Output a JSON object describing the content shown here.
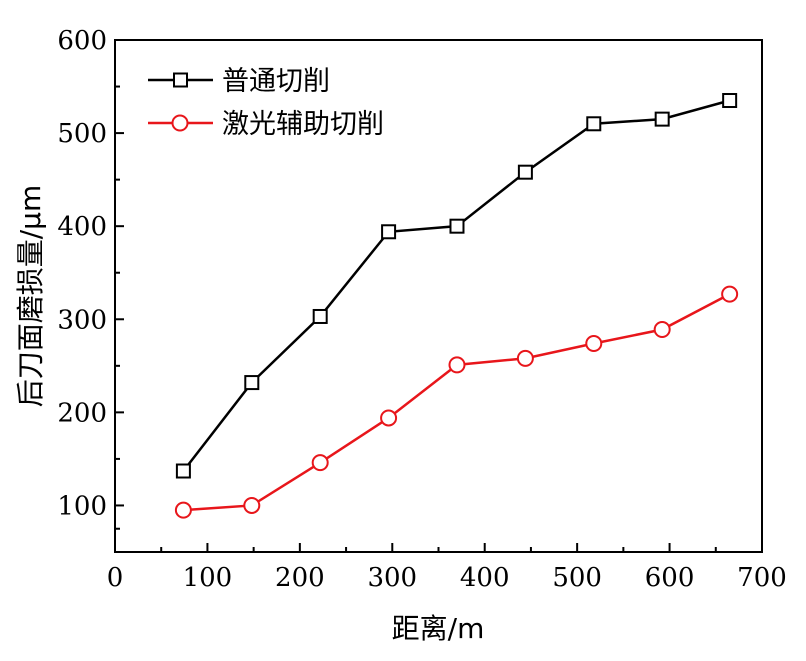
{
  "chart_data": {
    "type": "line",
    "xlabel": "距离/m",
    "ylabel": "后刀面磨损量/μm",
    "xlim": [
      0,
      700
    ],
    "ylim": [
      50,
      600
    ],
    "xticks": [
      0,
      100,
      200,
      300,
      400,
      500,
      600,
      700
    ],
    "yticks": [
      100,
      200,
      300,
      400,
      500,
      600
    ],
    "grid": false,
    "legend_position": "top-left",
    "series": [
      {
        "name": "普通切削",
        "color": "#000000",
        "marker": "square",
        "x": [
          74,
          148,
          222,
          296,
          370,
          444,
          518,
          592,
          665
        ],
        "y": [
          137,
          232,
          303,
          394,
          400,
          458,
          510,
          515,
          535
        ]
      },
      {
        "name": "激光辅助切削",
        "color": "#e8161b",
        "marker": "circle",
        "x": [
          74,
          148,
          222,
          296,
          370,
          444,
          518,
          592,
          665
        ],
        "y": [
          95,
          100,
          146,
          194,
          251,
          258,
          274,
          289,
          327
        ]
      }
    ]
  }
}
